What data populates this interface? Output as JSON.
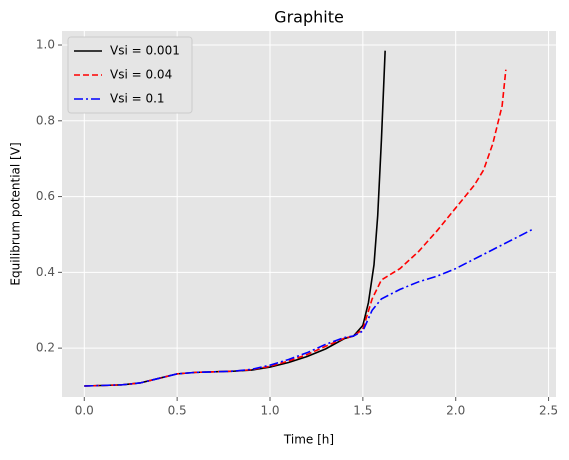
{
  "chart_data": {
    "type": "line",
    "title": "Graphite",
    "xlabel": "Time [h]",
    "ylabel": "Equilibrum potential [V]",
    "xlim": [
      -0.12,
      2.54
    ],
    "ylim": [
      0.071,
      1.037
    ],
    "xticks": [
      {
        "value": 0,
        "label": "0.0"
      },
      0.5,
      {
        "value": 1,
        "label": "1.0"
      },
      1.5,
      {
        "value": 2,
        "label": "2.0"
      },
      2.5
    ],
    "yticks": [
      0.2,
      0.4,
      0.6,
      0.8,
      {
        "value": 1,
        "label": "1.0"
      }
    ],
    "grid": true,
    "legend": "upper left",
    "series": [
      {
        "name": "Vsi = 0.001",
        "color": "#000000",
        "style": "solid",
        "x": [
          0,
          0.2,
          0.3,
          0.4,
          0.5,
          0.6,
          0.8,
          0.9,
          1.0,
          1.1,
          1.2,
          1.3,
          1.4,
          1.45,
          1.5,
          1.53,
          1.56,
          1.58,
          1.6,
          1.62
        ],
        "values": [
          0.1,
          0.103,
          0.108,
          0.12,
          0.132,
          0.136,
          0.139,
          0.142,
          0.15,
          0.162,
          0.178,
          0.198,
          0.225,
          0.232,
          0.26,
          0.32,
          0.42,
          0.55,
          0.75,
          0.985
        ]
      },
      {
        "name": "Vsi = 0.04",
        "color": "#ff0000",
        "style": "dashed",
        "x": [
          0,
          0.2,
          0.3,
          0.4,
          0.5,
          0.6,
          0.8,
          0.9,
          1.0,
          1.1,
          1.2,
          1.3,
          1.4,
          1.45,
          1.5,
          1.55,
          1.6,
          1.7,
          1.8,
          1.9,
          2.0,
          2.1,
          2.15,
          2.2,
          2.25,
          2.27
        ],
        "values": [
          0.1,
          0.103,
          0.108,
          0.12,
          0.132,
          0.136,
          0.139,
          0.143,
          0.152,
          0.166,
          0.183,
          0.205,
          0.226,
          0.232,
          0.25,
          0.33,
          0.38,
          0.41,
          0.455,
          0.51,
          0.57,
          0.63,
          0.67,
          0.74,
          0.84,
          0.935
        ]
      },
      {
        "name": "Vsi = 0.1",
        "color": "#0000ff",
        "style": "dashdot",
        "x": [
          0,
          0.2,
          0.3,
          0.4,
          0.5,
          0.6,
          0.8,
          0.9,
          1.0,
          1.1,
          1.2,
          1.3,
          1.4,
          1.45,
          1.5,
          1.55,
          1.6,
          1.7,
          1.8,
          1.9,
          2.0,
          2.1,
          2.2,
          2.3,
          2.42
        ],
        "values": [
          0.1,
          0.103,
          0.108,
          0.12,
          0.132,
          0.136,
          0.139,
          0.144,
          0.155,
          0.17,
          0.188,
          0.21,
          0.228,
          0.232,
          0.245,
          0.3,
          0.33,
          0.355,
          0.375,
          0.39,
          0.41,
          0.435,
          0.46,
          0.485,
          0.515
        ]
      }
    ]
  }
}
